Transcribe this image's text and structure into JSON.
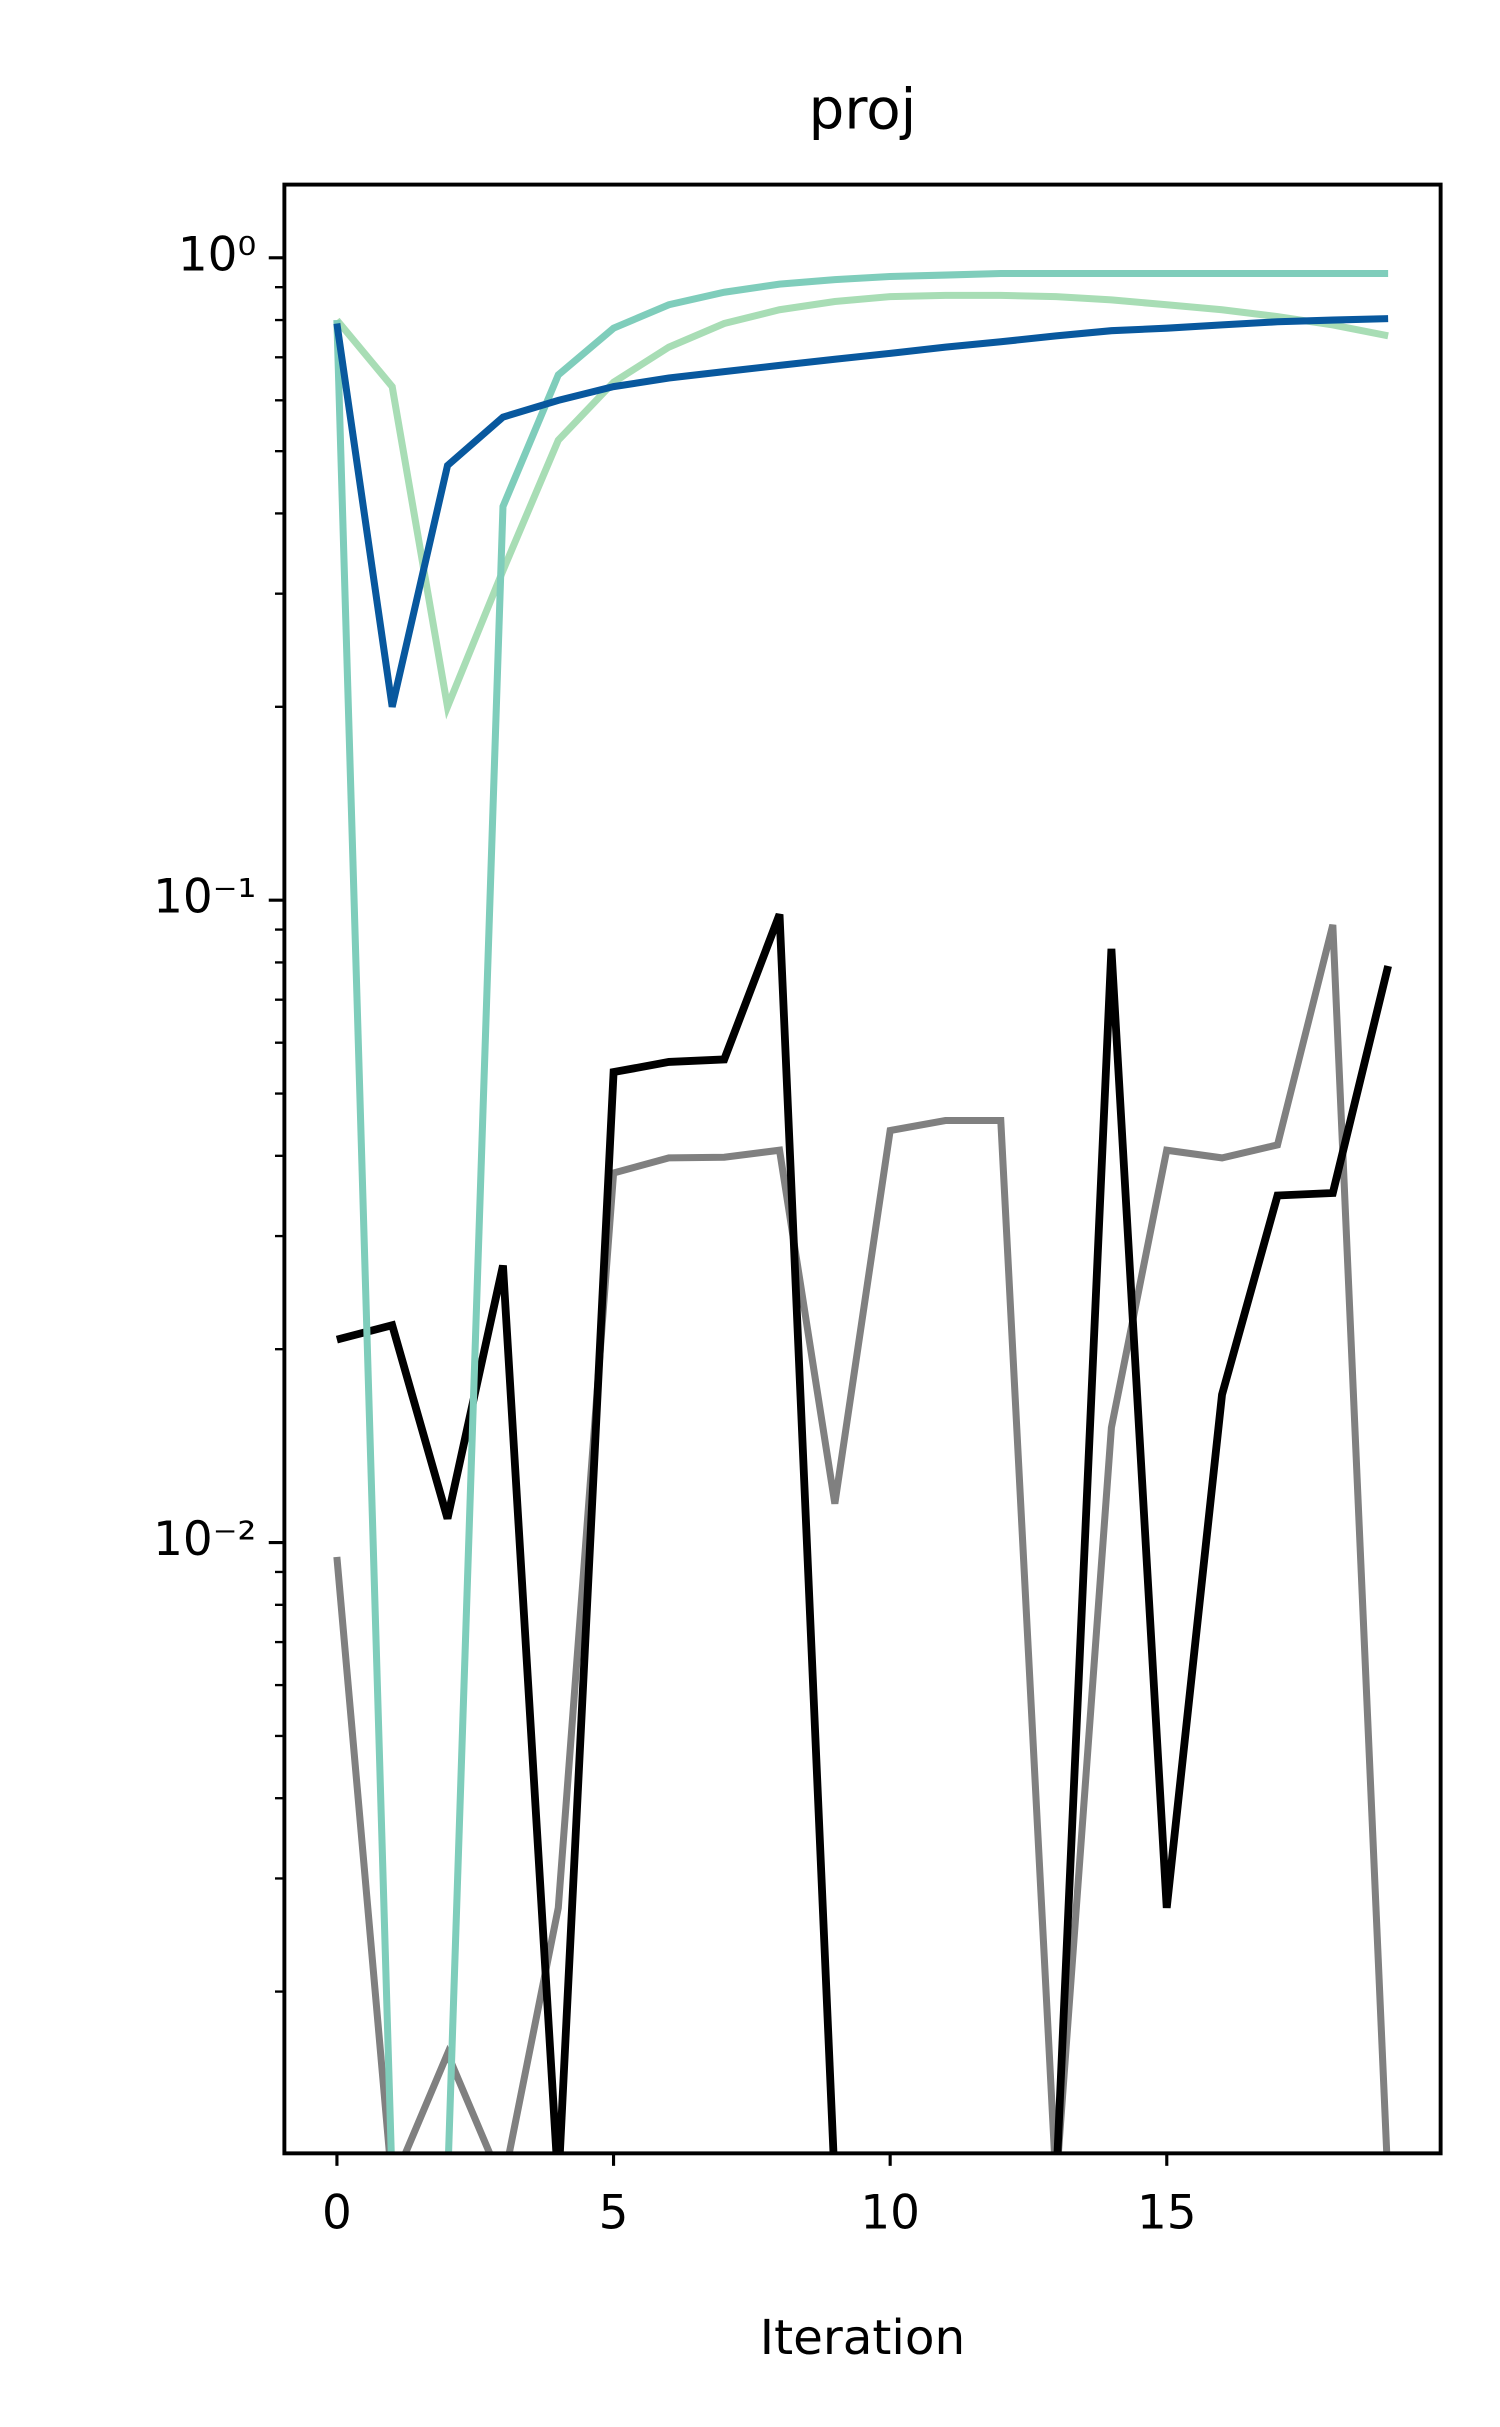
{
  "chart_data": {
    "type": "line",
    "title": "proj",
    "xlabel": "Iteration",
    "x": [
      0,
      1,
      2,
      3,
      4,
      5,
      6,
      7,
      8,
      9,
      10,
      11,
      12,
      13,
      14,
      15,
      16,
      17,
      18,
      19
    ],
    "series": [
      {
        "color": "#808080",
        "values": [
          0.0095,
          0,
          0.0016,
          0,
          0.0027,
          0.0376,
          0.0397,
          0.0398,
          0.0408,
          0.0115,
          0.0438,
          0.0454,
          0.0454,
          0,
          0.0151,
          0.0408,
          0.0397,
          0.0416,
          0.0915,
          0
        ]
      },
      {
        "color": "#000000",
        "values": [
          0.0207,
          0.0218,
          0.0109,
          0.027,
          0,
          0.054,
          0.056,
          0.0565,
          0.095,
          0,
          0,
          0,
          0,
          0,
          0.084,
          0.0027,
          0.017,
          0.0347,
          0.035,
          0.079
        ]
      },
      {
        "color": "#a8ddb5",
        "values": [
          0.8,
          0.63,
          0.2,
          0.326,
          0.52,
          0.64,
          0.726,
          0.79,
          0.83,
          0.855,
          0.87,
          0.874,
          0.874,
          0.87,
          0.86,
          0.845,
          0.83,
          0.81,
          0.786,
          0.756
        ]
      },
      {
        "color": "#7fcdbb",
        "values": [
          0.8,
          0,
          0,
          0.41,
          0.657,
          0.777,
          0.845,
          0.884,
          0.91,
          0.925,
          0.935,
          0.94,
          0.945,
          0.945,
          0.945,
          0.945,
          0.945,
          0.945,
          0.945,
          0.945
        ]
      },
      {
        "color": "#08589e",
        "values": [
          0.79,
          0.2,
          0.475,
          0.565,
          0.6,
          0.63,
          0.65,
          0.665,
          0.68,
          0.695,
          0.71,
          0.726,
          0.74,
          0.756,
          0.77,
          0.777,
          0.786,
          0.795,
          0.8,
          0.804
        ]
      }
    ],
    "xlim": [
      -0.95,
      19.95
    ],
    "xticks": [
      0,
      5,
      10,
      15
    ],
    "ylim": [
      0.00112,
      1.3
    ],
    "yscale": "log",
    "yticks": [
      {
        "value": 1,
        "label": "10⁰"
      },
      {
        "value": 0.1,
        "label": "10⁻¹"
      },
      {
        "value": 0.01,
        "label": "10⁻²"
      }
    ],
    "yminorticks": [
      0.002,
      0.003,
      0.004,
      0.005,
      0.006,
      0.007,
      0.008,
      0.009,
      0.02,
      0.03,
      0.04,
      0.05,
      0.06,
      0.07,
      0.08,
      0.09,
      0.2,
      0.3,
      0.4,
      0.5,
      0.6,
      0.7,
      0.8,
      0.9
    ]
  }
}
